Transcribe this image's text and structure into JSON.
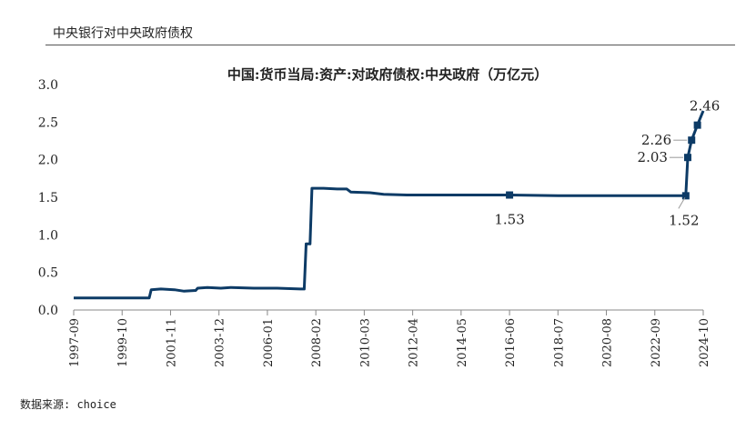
{
  "page": {
    "heading": "中央银行对中央政府债权",
    "source": "数据来源: choice"
  },
  "chart_data": {
    "type": "line",
    "title": "中国:货币当局:资产:对政府债权:中央政府（万亿元）",
    "xlabel": "",
    "ylabel": "",
    "ylim": [
      0,
      3.0
    ],
    "yticks": [
      "0.0",
      "0.5",
      "1.0",
      "1.5",
      "2.0",
      "2.5",
      "3.0"
    ],
    "xticks": [
      "1997-09",
      "1999-10",
      "2001-11",
      "2003-12",
      "2006-01",
      "2008-02",
      "2010-03",
      "2012-04",
      "2014-05",
      "2016-06",
      "2018-07",
      "2020-08",
      "2022-09",
      "2024-10"
    ],
    "xrange": [
      "1997-09",
      "2024-10"
    ],
    "color": "#0d3b66",
    "series": [
      {
        "values": [
          [
            "1997-09",
            0.16
          ],
          [
            "2000-12",
            0.16
          ],
          [
            "2001-01",
            0.27
          ],
          [
            "2001-06",
            0.28
          ],
          [
            "2002-01",
            0.27
          ],
          [
            "2002-06",
            0.25
          ],
          [
            "2002-12",
            0.26
          ],
          [
            "2003-01",
            0.29
          ],
          [
            "2003-06",
            0.3
          ],
          [
            "2004-01",
            0.29
          ],
          [
            "2004-06",
            0.3
          ],
          [
            "2005-06",
            0.29
          ],
          [
            "2006-06",
            0.29
          ],
          [
            "2007-06",
            0.28
          ],
          [
            "2007-08",
            0.28
          ],
          [
            "2007-09",
            0.88
          ],
          [
            "2007-11",
            0.88
          ],
          [
            "2007-12",
            1.62
          ],
          [
            "2008-06",
            1.62
          ],
          [
            "2009-01",
            1.61
          ],
          [
            "2009-06",
            1.61
          ],
          [
            "2009-08",
            1.57
          ],
          [
            "2010-06",
            1.56
          ],
          [
            "2011-01",
            1.54
          ],
          [
            "2012-01",
            1.53
          ],
          [
            "2016-06",
            1.53
          ],
          [
            "2018-07",
            1.52
          ],
          [
            "2024-01",
            1.52
          ],
          [
            "2024-02",
            2.03
          ],
          [
            "2024-04",
            2.26
          ],
          [
            "2024-07",
            2.46
          ],
          [
            "2024-10",
            2.65
          ]
        ]
      }
    ],
    "markers": [
      [
        "2016-06",
        1.53
      ],
      [
        "2024-01",
        1.52
      ],
      [
        "2024-02",
        2.03
      ],
      [
        "2024-04",
        2.26
      ],
      [
        "2024-07",
        2.46
      ]
    ],
    "annotations": [
      {
        "text": "1.53",
        "x": "2016-06",
        "y": 1.53,
        "pos": "below"
      },
      {
        "text": "1.52",
        "x": "2024-01",
        "y": 1.52,
        "pos": "below-left"
      },
      {
        "text": "2.03",
        "x": "2024-02",
        "y": 2.03,
        "pos": "left"
      },
      {
        "text": "2.26",
        "x": "2024-04",
        "y": 2.26,
        "pos": "left"
      },
      {
        "text": "2.46",
        "x": "2024-07",
        "y": 2.46,
        "pos": "above"
      }
    ],
    "grid": false
  }
}
